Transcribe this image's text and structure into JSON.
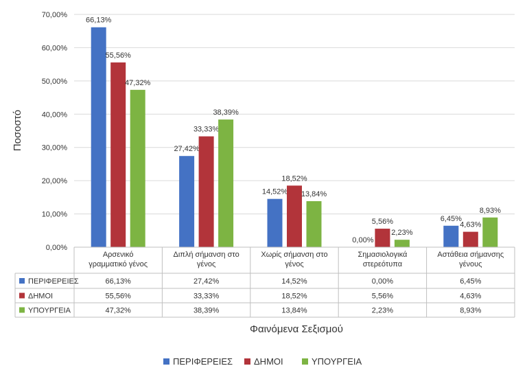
{
  "chart_data": {
    "type": "bar",
    "title": "",
    "xlabel": "Φαινόμενα Σεξισμού",
    "ylabel": "Ποσοστό",
    "ylim": [
      0,
      70
    ],
    "yticks": [
      "0,00%",
      "10,00%",
      "20,00%",
      "30,00%",
      "40,00%",
      "50,00%",
      "60,00%",
      "70,00%"
    ],
    "grid": true,
    "legend_position": "bottom",
    "categories": [
      [
        "Αρσενικό",
        "γραμματικό γένος"
      ],
      [
        "Διπλή σήμανση στο",
        "γένος"
      ],
      [
        "Χωρίς σήμανση στο",
        "γένος"
      ],
      [
        "Σημασιολογικά",
        "στερεότυπα"
      ],
      [
        "Αστάθεια σήμανσης",
        "γένους"
      ]
    ],
    "series": [
      {
        "name": "ΠΕΡΙΦΕΡΕΙΕΣ",
        "color": "#4472C4",
        "values": [
          66.13,
          27.42,
          14.52,
          0.0,
          6.45
        ],
        "labels": [
          "66,13%",
          "27,42%",
          "14,52%",
          "0,00%",
          "6,45%"
        ]
      },
      {
        "name": "ΔΗΜΟΙ",
        "color": "#B2343A",
        "values": [
          55.56,
          33.33,
          18.52,
          5.56,
          4.63
        ],
        "labels": [
          "55,56%",
          "33,33%",
          "18,52%",
          "5,56%",
          "4,63%"
        ]
      },
      {
        "name": "ΥΠΟΥΡΓΕΙΑ",
        "color": "#7DB443",
        "values": [
          47.32,
          38.39,
          13.84,
          2.23,
          8.93
        ],
        "labels": [
          "47,32%",
          "38,39%",
          "13,84%",
          "2,23%",
          "8,93%"
        ]
      }
    ]
  }
}
